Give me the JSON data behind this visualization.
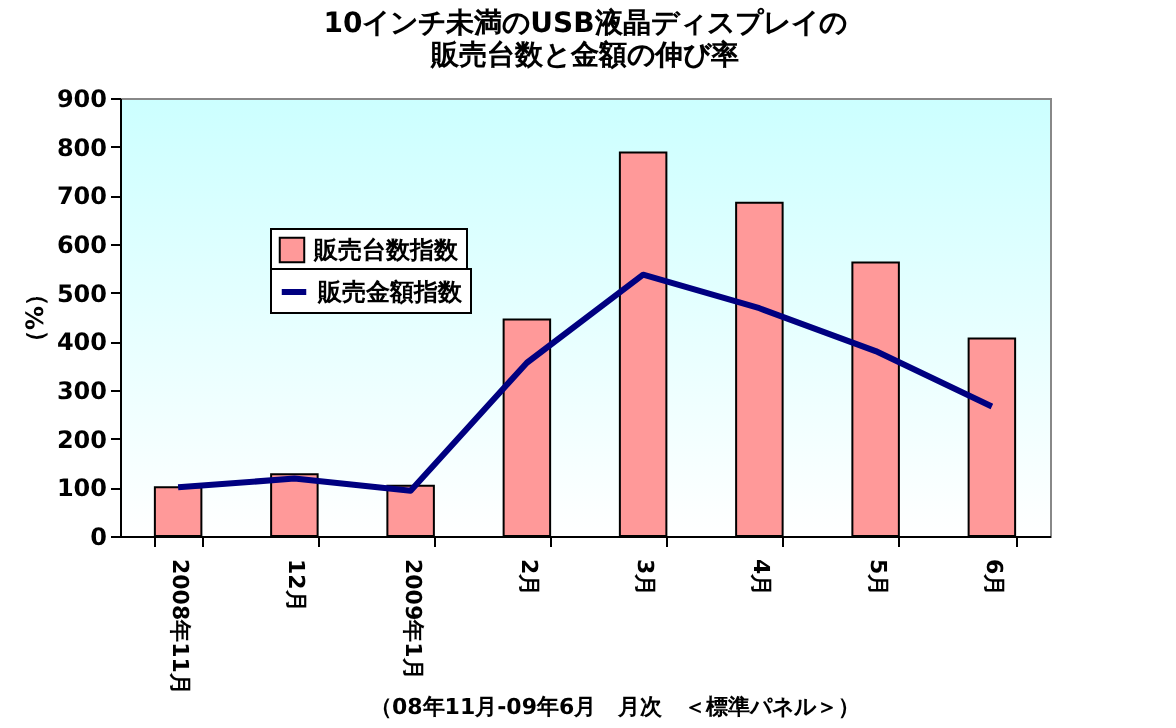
{
  "chart_data": {
    "type": "bar",
    "title": [
      "10インチ未満のUSB液晶ディスプレイの",
      "販売台数と金額の伸び率"
    ],
    "ylabel": "（%）",
    "categories": [
      "2008年11月",
      "12月",
      "2009年1月",
      "2月",
      "3月",
      "4月",
      "5月",
      "6月"
    ],
    "series": [
      {
        "name": "販売台数指数",
        "color": "#ff9999",
        "values": [
          100,
          127,
          103,
          445,
          788,
          685,
          562,
          406
        ]
      },
      {
        "name": "販売金額指数",
        "type": "line",
        "color": "#000080",
        "values": [
          100,
          118,
          93,
          356,
          537,
          468,
          380,
          266
        ]
      }
    ],
    "ylim": [
      0,
      900
    ],
    "yticks": [
      0,
      100,
      200,
      300,
      400,
      500,
      600,
      700,
      800,
      900
    ],
    "legend": "left",
    "grid": false,
    "annotations": [
      "（08年11月-09年6月　月次　＜標準パネル＞）"
    ]
  }
}
